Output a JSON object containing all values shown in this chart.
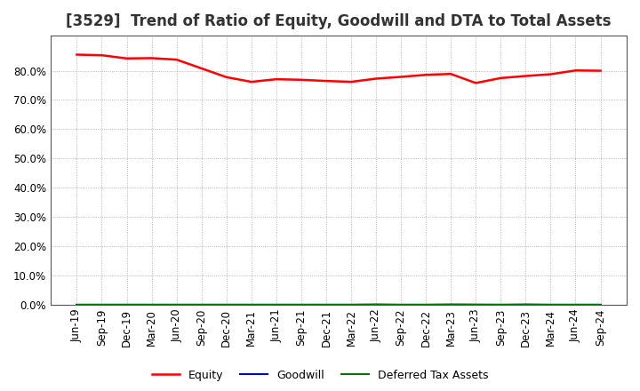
{
  "title": "[3529]  Trend of Ratio of Equity, Goodwill and DTA to Total Assets",
  "x_labels": [
    "Jun-19",
    "Sep-19",
    "Dec-19",
    "Mar-20",
    "Jun-20",
    "Sep-20",
    "Dec-20",
    "Mar-21",
    "Jun-21",
    "Sep-21",
    "Dec-21",
    "Mar-22",
    "Jun-22",
    "Sep-22",
    "Dec-22",
    "Mar-23",
    "Jun-23",
    "Sep-23",
    "Dec-23",
    "Mar-24",
    "Jun-24",
    "Sep-24"
  ],
  "equity": [
    85.5,
    85.3,
    84.2,
    84.3,
    83.8,
    80.8,
    77.8,
    76.2,
    77.1,
    76.9,
    76.5,
    76.2,
    77.3,
    77.9,
    78.6,
    78.9,
    75.8,
    77.5,
    78.2,
    78.8,
    80.1,
    80.0
  ],
  "goodwill": [
    0.0,
    0.0,
    0.0,
    0.0,
    0.0,
    0.0,
    0.0,
    0.0,
    0.0,
    0.0,
    0.0,
    0.0,
    0.0,
    0.0,
    0.0,
    0.0,
    0.0,
    0.0,
    0.0,
    0.0,
    0.0,
    0.0
  ],
  "dta": [
    0.0,
    0.0,
    0.0,
    0.0,
    0.0,
    0.0,
    0.0,
    0.0,
    0.0,
    0.0,
    0.0,
    0.0,
    0.1,
    0.0,
    0.0,
    0.1,
    0.05,
    0.0,
    0.1,
    0.0,
    0.0,
    0.0
  ],
  "equity_color": "#FF0000",
  "goodwill_color": "#0000CC",
  "dta_color": "#007700",
  "bg_color": "#FFFFFF",
  "plot_bg_color": "#FFFFFF",
  "grid_color": "#999999",
  "ylim": [
    0,
    92
  ],
  "yticks": [
    0,
    10,
    20,
    30,
    40,
    50,
    60,
    70,
    80
  ],
  "legend_labels": [
    "Equity",
    "Goodwill",
    "Deferred Tax Assets"
  ],
  "title_fontsize": 12,
  "label_fontsize": 9,
  "tick_fontsize": 8.5
}
